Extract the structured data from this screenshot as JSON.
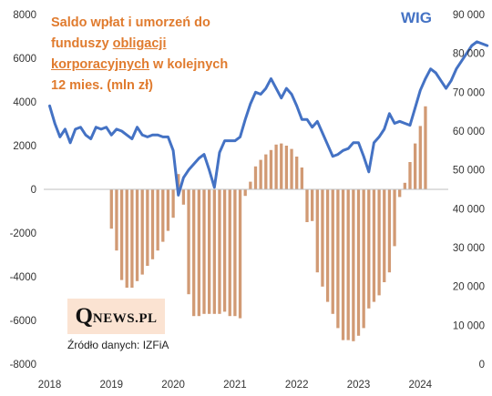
{
  "title": {
    "prefix": "Saldo wpłat i umorzeń do funduszy ",
    "underlined": "obligacji korporacyjnych",
    "suffix": " w kolejnych 12 mies. (mln zł)"
  },
  "wig_label": "WIG",
  "brand": {
    "q": "Q",
    "rest": "NEWS.PL"
  },
  "source": "Źródło danych: IZFiA",
  "colors": {
    "bars": "#d19a74",
    "line": "#4472c4",
    "title": "#e07b2e",
    "brand_bg": "#fbe3d2"
  },
  "chart_data": {
    "type": "bar+line",
    "x_start": "2018-01",
    "x_tick_labels": [
      "2018",
      "2019",
      "2020",
      "2021",
      "2022",
      "2023",
      "2024"
    ],
    "y_left": {
      "min": -8000,
      "max": 8000,
      "step": 2000,
      "tick_labels": [
        "-8000",
        "-6000",
        "-4000",
        "-2000",
        "0",
        "2000",
        "4000",
        "6000",
        "8000"
      ]
    },
    "y_right": {
      "min": 0,
      "max": 90000,
      "step": 10000,
      "tick_labels": [
        "0",
        "10 000",
        "20 000",
        "30 000",
        "40 000",
        "50 000",
        "60 000",
        "70 000",
        "80 000",
        "90 000"
      ]
    },
    "grid": false,
    "series": [
      {
        "name": "Saldo wpłat i umorzeń (mln zł)",
        "type": "bar",
        "axis": "left",
        "start": "2018-01",
        "values": [
          0,
          0,
          0,
          0,
          0,
          0,
          0,
          0,
          0,
          0,
          0,
          0,
          -1800,
          -2800,
          -4150,
          -4500,
          -4500,
          -4200,
          -3900,
          -3500,
          -3200,
          -2800,
          -2400,
          -1900,
          -1300,
          700,
          -700,
          -4800,
          -5800,
          -5800,
          -5700,
          -5700,
          -5700,
          -5700,
          -5600,
          -5800,
          -5800,
          -5900,
          -300,
          350,
          1050,
          1350,
          1600,
          1800,
          2050,
          2100,
          2000,
          1850,
          1500,
          1000,
          -1500,
          -1450,
          -3800,
          -4450,
          -5150,
          -5700,
          -6350,
          -6900,
          -6900,
          -6950,
          -6700,
          -6350,
          -5450,
          -5150,
          -4850,
          -4250,
          -3800,
          -2600,
          -350,
          300,
          1250,
          2100,
          2900,
          3800
        ]
      },
      {
        "name": "WIG",
        "type": "line",
        "axis": "right",
        "start": "2018-01",
        "values": [
          66500,
          62000,
          58500,
          60500,
          57000,
          60500,
          61000,
          59000,
          58000,
          61000,
          60500,
          61000,
          59000,
          60500,
          60000,
          59000,
          58000,
          61000,
          59000,
          58500,
          59000,
          59000,
          58500,
          58500,
          55000,
          43500,
          48000,
          50000,
          51500,
          53000,
          54000,
          50000,
          45500,
          54500,
          57500,
          57500,
          57500,
          58500,
          63000,
          67000,
          70000,
          69500,
          71000,
          73500,
          71000,
          68500,
          71000,
          69500,
          66500,
          63000,
          63000,
          61000,
          62500,
          59500,
          56500,
          53500,
          54000,
          55000,
          55500,
          57000,
          57000,
          53500,
          49500,
          57000,
          58500,
          60500,
          64500,
          62000,
          62500,
          62000,
          61500,
          66000,
          70500,
          73500,
          76000,
          75000,
          73000,
          71000,
          73000,
          76000,
          78000,
          80000,
          82000,
          83000,
          82500,
          82000
        ]
      }
    ]
  }
}
